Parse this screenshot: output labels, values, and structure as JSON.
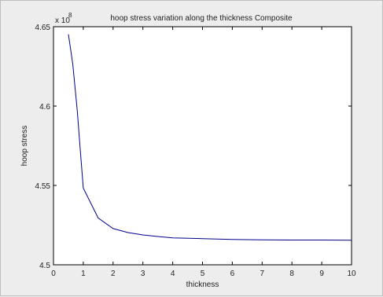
{
  "chart_data": {
    "type": "line",
    "title": "hoop stress  variation along the thickness Composite",
    "xlabel": "thickness",
    "ylabel": "hoop stress",
    "y_exponent_base": "x 10",
    "y_exponent_power": "8",
    "xlim": [
      0,
      10
    ],
    "ylim": [
      4.5,
      4.65
    ],
    "xticks": [
      0,
      1,
      2,
      3,
      4,
      5,
      6,
      7,
      8,
      9,
      10
    ],
    "xtick_labels": [
      "0",
      "1",
      "2",
      "3",
      "4",
      "5",
      "6",
      "7",
      "8",
      "9",
      "10"
    ],
    "yticks": [
      4.5,
      4.55,
      4.6,
      4.65
    ],
    "ytick_labels": [
      "4.5",
      "4.55",
      "4.6",
      "4.65"
    ],
    "grid": false,
    "series": [
      {
        "color": "#00008b",
        "x": [
          0.5,
          0.65,
          0.8,
          0.9,
          1.0,
          1.5,
          2.0,
          2.5,
          3.0,
          3.5,
          4.0,
          5.0,
          6.0,
          7.0,
          8.0,
          9.0,
          10.0
        ],
        "y": [
          4.6452,
          4.6262,
          4.5968,
          4.5722,
          4.5483,
          4.5295,
          4.5228,
          4.5203,
          4.5188,
          4.5178,
          4.517,
          4.5165,
          4.516,
          4.5157,
          4.5156,
          4.5156,
          4.5155
        ]
      }
    ]
  }
}
